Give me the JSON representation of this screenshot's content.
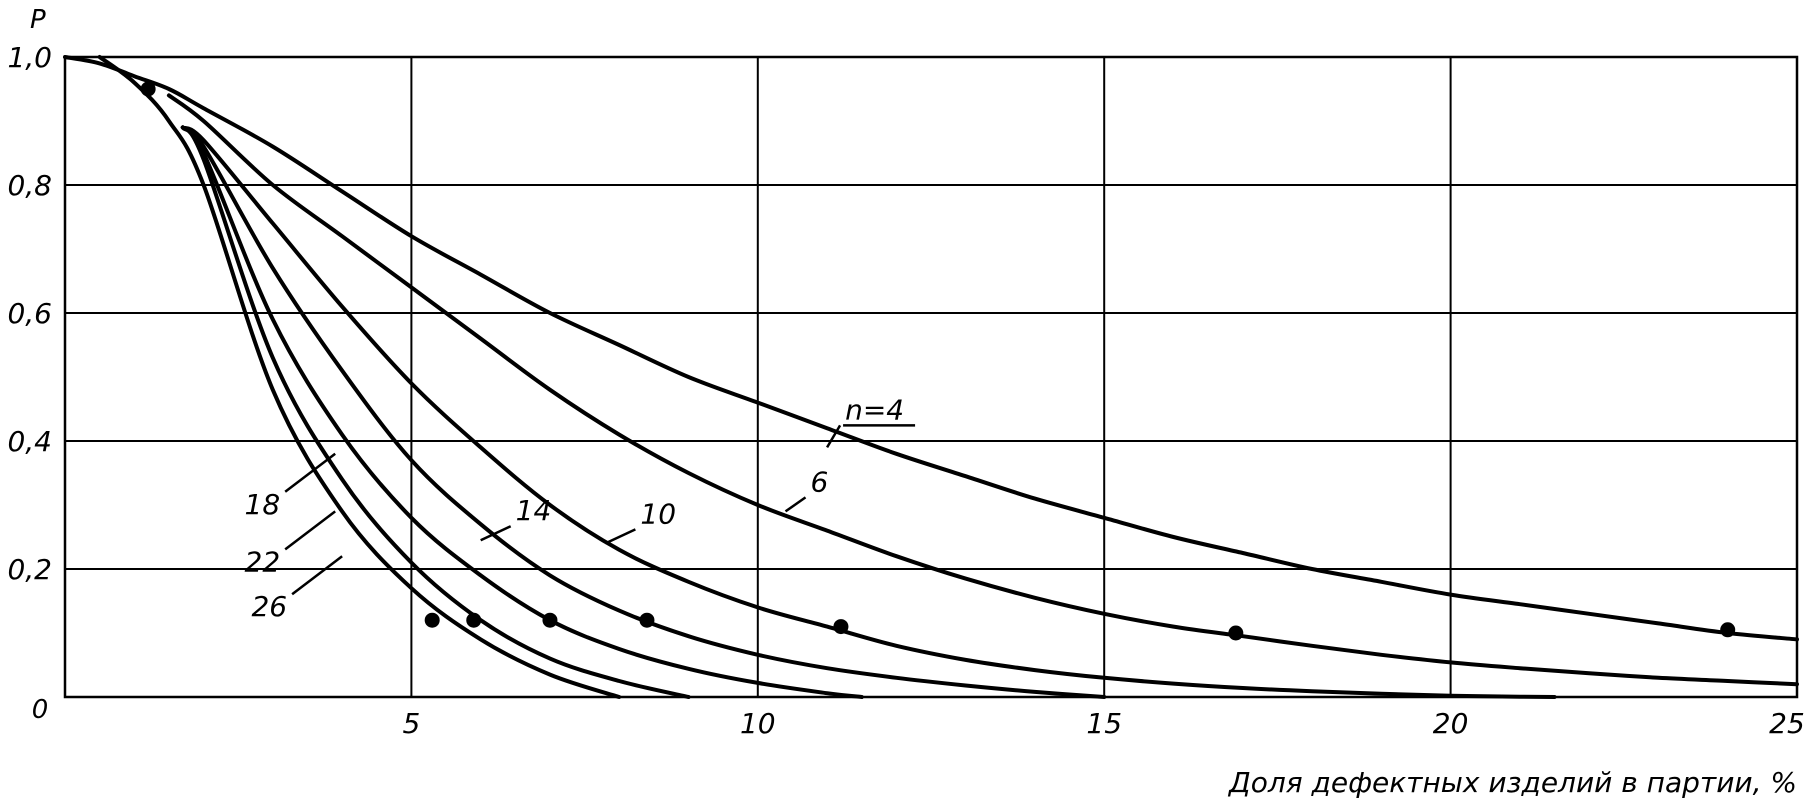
{
  "chart_data": {
    "type": "line",
    "title": "",
    "xlabel": "Доля дефектных изделий в партии, %",
    "ylabel": "P",
    "xlim": [
      0,
      25
    ],
    "ylim": [
      0,
      1.0
    ],
    "grid": true,
    "x_ticks": [
      {
        "value": 5,
        "label": "5"
      },
      {
        "value": 10,
        "label": "10"
      },
      {
        "value": 15,
        "label": "15"
      },
      {
        "value": 20,
        "label": "20"
      },
      {
        "value": 25,
        "label": "25"
      }
    ],
    "y_ticks": [
      {
        "value": 0.2,
        "label": "0,2"
      },
      {
        "value": 0.4,
        "label": "0,4"
      },
      {
        "value": 0.6,
        "label": "0,6"
      },
      {
        "value": 0.8,
        "label": "0,8"
      },
      {
        "value": 1.0,
        "label": "1,0"
      }
    ],
    "origin_label": "0",
    "line_color": "#000000",
    "series": [
      {
        "name": "n=4",
        "x": [
          0,
          0.5,
          1.0,
          1.5,
          2.0,
          3.0,
          4.0,
          5.0,
          6.0,
          7.0,
          8.0,
          9.0,
          10.0,
          11.0,
          12.0,
          13.0,
          14.0,
          15.0,
          16.0,
          17.0,
          18.0,
          19.0,
          20.0,
          21.0,
          22.0,
          23.0,
          24.0,
          25.0
        ],
        "y": [
          1.0,
          0.99,
          0.97,
          0.95,
          0.92,
          0.86,
          0.79,
          0.72,
          0.66,
          0.6,
          0.55,
          0.5,
          0.46,
          0.42,
          0.38,
          0.345,
          0.31,
          0.28,
          0.25,
          0.225,
          0.2,
          0.18,
          0.16,
          0.145,
          0.13,
          0.115,
          0.1,
          0.09
        ],
        "marker": [
          24,
          0.105
        ],
        "label_at": [
          11,
          0.39
        ]
      },
      {
        "name": "6",
        "x": [
          1.5,
          2.0,
          3.0,
          4.0,
          5.0,
          6.0,
          7.0,
          8.0,
          9.0,
          10.0,
          11.0,
          12.0,
          13.0,
          14.0,
          15.0,
          16.0,
          17.0,
          18.0,
          19.0,
          20.0,
          21.0,
          22.0,
          23.0,
          24.0,
          25.0
        ],
        "y": [
          0.94,
          0.9,
          0.8,
          0.72,
          0.64,
          0.56,
          0.48,
          0.41,
          0.35,
          0.3,
          0.26,
          0.22,
          0.185,
          0.155,
          0.13,
          0.11,
          0.095,
          0.08,
          0.066,
          0.054,
          0.045,
          0.037,
          0.03,
          0.025,
          0.02
        ],
        "marker": [
          16.9,
          0.1
        ],
        "label_at": [
          10.4,
          0.29
        ]
      },
      {
        "name": "10",
        "x": [
          1.7,
          2.0,
          3.0,
          4.0,
          5.0,
          6.0,
          7.0,
          8.0,
          9.0,
          10.0,
          11.0,
          12.0,
          13.0,
          14.0,
          15.0,
          16.0,
          17.0,
          18.0,
          19.0,
          20.0,
          21.0,
          21.5
        ],
        "y": [
          0.89,
          0.87,
          0.74,
          0.61,
          0.49,
          0.39,
          0.3,
          0.23,
          0.18,
          0.14,
          0.11,
          0.08,
          0.058,
          0.042,
          0.03,
          0.021,
          0.014,
          0.009,
          0.005,
          0.002,
          0.0005,
          0.0
        ],
        "marker": [
          11.2,
          0.11
        ],
        "label_at": [
          7.8,
          0.24
        ]
      },
      {
        "name": "14",
        "x": [
          1.7,
          2.0,
          3.0,
          4.0,
          5.0,
          6.0,
          7.0,
          8.0,
          9.0,
          10.0,
          11.0,
          12.0,
          13.0,
          14.0,
          15.0
        ],
        "y": [
          0.89,
          0.86,
          0.67,
          0.51,
          0.37,
          0.27,
          0.19,
          0.135,
          0.095,
          0.066,
          0.045,
          0.03,
          0.018,
          0.008,
          0.0
        ],
        "marker": [
          8.4,
          0.12
        ],
        "label_at": [
          6.0,
          0.245
        ]
      },
      {
        "name": "18",
        "x": [
          1.7,
          2.0,
          3.0,
          4.0,
          5.0,
          6.0,
          7.0,
          8.0,
          9.0,
          10.0,
          11.0,
          11.5
        ],
        "y": [
          0.89,
          0.85,
          0.59,
          0.41,
          0.28,
          0.19,
          0.12,
          0.075,
          0.044,
          0.022,
          0.006,
          0.0
        ],
        "marker": [
          7.0,
          0.12
        ],
        "label_at": [
          3.9,
          0.38
        ]
      },
      {
        "name": "22",
        "x": [
          1.7,
          2.0,
          3.0,
          4.0,
          5.0,
          6.0,
          7.0,
          8.0,
          9.0
        ],
        "y": [
          0.89,
          0.84,
          0.53,
          0.34,
          0.21,
          0.12,
          0.06,
          0.025,
          0.0
        ],
        "marker": [
          5.9,
          0.12
        ],
        "label_at": [
          3.9,
          0.29
        ]
      },
      {
        "name": "26",
        "x": [
          0.5,
          1.0,
          1.5,
          2.0,
          3.0,
          4.0,
          5.0,
          6.0,
          7.0,
          8.0
        ],
        "y": [
          1.0,
          0.96,
          0.9,
          0.8,
          0.48,
          0.29,
          0.17,
          0.09,
          0.035,
          0.0
        ],
        "marker": [
          5.3,
          0.12
        ],
        "label_at": [
          4.0,
          0.22
        ]
      }
    ],
    "common_marker": [
      1.2,
      0.95
    ]
  }
}
